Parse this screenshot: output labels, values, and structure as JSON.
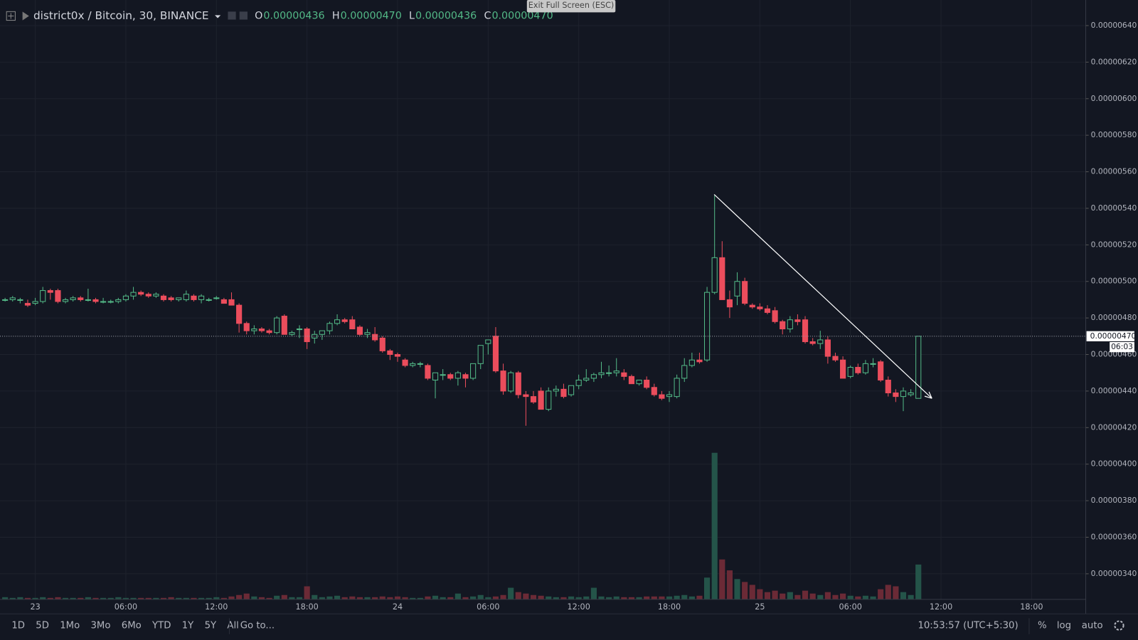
{
  "chart_data": {
    "type": "candlestick",
    "symbol": "district0x / Bitcoin, 30, BINANCE",
    "ohlc_legend": [
      {
        "key": "O",
        "value": "0.00000436"
      },
      {
        "key": "H",
        "value": "0.00000470"
      },
      {
        "key": "L",
        "value": "0.00000436"
      },
      {
        "key": "C",
        "value": "0.00000470"
      }
    ],
    "last_price": 4.7e-06,
    "last_price_label": "0.00000470",
    "countdown": "06:03",
    "up_color": "#53b987",
    "down_color": "#eb4d5c",
    "up_volume_color": "#245449",
    "down_volume_color": "#6b2a36",
    "grid": true,
    "ylim": [
      3.26e-06,
      6.54e-06
    ],
    "yticks": [
      {
        "value": 6.4e-06,
        "label": "0.00000640"
      },
      {
        "value": 6.2e-06,
        "label": "0.00000620"
      },
      {
        "value": 6e-06,
        "label": "0.00000600"
      },
      {
        "value": 5.8e-06,
        "label": "0.00000580"
      },
      {
        "value": 5.6e-06,
        "label": "0.00000560"
      },
      {
        "value": 5.4e-06,
        "label": "0.00000540"
      },
      {
        "value": 5.2e-06,
        "label": "0.00000520"
      },
      {
        "value": 5e-06,
        "label": "0.00000500"
      },
      {
        "value": 4.8e-06,
        "label": "0.00000480"
      },
      {
        "value": 4.6e-06,
        "label": "0.00000460"
      },
      {
        "value": 4.4e-06,
        "label": "0.00000440"
      },
      {
        "value": 4.2e-06,
        "label": "0.00000420"
      },
      {
        "value": 4e-06,
        "label": "0.00000400"
      },
      {
        "value": 3.8e-06,
        "label": "0.00000380"
      },
      {
        "value": 3.6e-06,
        "label": "0.00000360"
      },
      {
        "value": 3.4e-06,
        "label": "0.00000340"
      }
    ],
    "categories": [
      null,
      null,
      null,
      null,
      "23",
      null,
      null,
      null,
      null,
      null,
      null,
      null,
      null,
      null,
      null,
      null,
      "06:00",
      null,
      null,
      null,
      null,
      null,
      null,
      null,
      null,
      null,
      null,
      null,
      "12:00",
      null,
      null,
      null,
      null,
      null,
      null,
      null,
      null,
      null,
      null,
      null,
      "18:00",
      null,
      null,
      null,
      null,
      null,
      null,
      null,
      null,
      null,
      null,
      null,
      "24",
      null,
      null,
      null,
      null,
      null,
      null,
      null,
      null,
      null,
      null,
      null,
      "06:00",
      null,
      null,
      null,
      null,
      null,
      null,
      null,
      null,
      null,
      null,
      null,
      "12:00",
      null,
      null,
      null,
      null,
      null,
      null,
      null,
      null,
      null,
      null,
      null,
      "18:00",
      null,
      null,
      null,
      null,
      null,
      null,
      null,
      null,
      null,
      null,
      null,
      "25",
      null,
      null,
      null,
      null,
      null,
      null,
      null,
      null,
      null,
      null,
      null,
      "06:00",
      null,
      null,
      null,
      null,
      null,
      null,
      null,
      null,
      null,
      null,
      null,
      "12:00",
      null,
      null,
      null,
      null,
      null,
      null,
      null,
      null,
      null,
      null,
      null,
      "18:00",
      null,
      null,
      null,
      null,
      null,
      null
    ],
    "open": [
      4.9e-06,
      4.9e-06,
      4.9e-06,
      4.88e-06,
      4.88e-06,
      4.89e-06,
      4.95e-06,
      4.95e-06,
      4.89e-06,
      4.9e-06,
      4.91e-06,
      4.9e-06,
      4.9e-06,
      4.89e-06,
      4.89e-06,
      4.89e-06,
      4.9e-06,
      4.92e-06,
      4.94e-06,
      4.93e-06,
      4.92e-06,
      4.92e-06,
      4.91e-06,
      4.9e-06,
      4.9e-06,
      4.92e-06,
      4.9e-06,
      4.9e-06,
      4.91e-06,
      4.9e-06,
      4.9e-06,
      4.87e-06,
      4.77e-06,
      4.73e-06,
      4.74e-06,
      4.73e-06,
      4.72e-06,
      4.81e-06,
      4.71e-06,
      4.74e-06,
      4.74e-06,
      4.69e-06,
      4.71e-06,
      4.73e-06,
      4.77e-06,
      4.79e-06,
      4.79e-06,
      4.75e-06,
      4.71e-06,
      4.71e-06,
      4.69e-06,
      4.62e-06,
      4.6e-06,
      4.57e-06,
      4.54e-06,
      4.55e-06,
      4.54e-06,
      4.46e-06,
      4.49e-06,
      4.49e-06,
      4.47e-06,
      4.49e-06,
      4.47e-06,
      4.55e-06,
      4.66e-06,
      4.7e-06,
      4.51e-06,
      4.4e-06,
      4.5e-06,
      4.38e-06,
      4.37e-06,
      4.4e-06,
      4.3e-06,
      4.4e-06,
      4.41e-06,
      4.38e-06,
      4.43e-06,
      4.46e-06,
      4.47e-06,
      4.49e-06,
      4.5e-06,
      4.5e-06,
      4.5e-06,
      4.48e-06,
      4.44e-06,
      4.46e-06,
      4.42e-06,
      4.38e-06,
      4.37e-06,
      4.37e-06,
      4.47e-06,
      4.54e-06,
      4.57e-06,
      4.57e-06,
      4.94e-06,
      5.13e-06,
      4.9e-06,
      4.92e-06,
      5e-06,
      4.87e-06,
      4.86e-06,
      4.85e-06,
      4.84e-06,
      4.78e-06,
      4.74e-06,
      4.79e-06,
      4.79e-06,
      4.67e-06,
      4.66e-06,
      4.68e-06,
      4.59e-06,
      4.57e-06,
      4.48e-06,
      4.53e-06,
      4.5e-06,
      4.55e-06,
      4.56e-06,
      4.46e-06,
      4.39e-06,
      4.37e-06,
      4.38e-06,
      4.36e-06,
      null,
      null,
      null,
      null,
      null,
      null,
      null,
      null,
      null,
      null,
      null,
      null,
      null,
      null,
      null,
      null,
      null,
      null,
      null,
      null,
      null
    ],
    "high": [
      4.91e-06,
      4.92e-06,
      4.91e-06,
      4.9e-06,
      4.91e-06,
      4.97e-06,
      4.96e-06,
      4.96e-06,
      4.91e-06,
      4.92e-06,
      4.92e-06,
      4.96e-06,
      4.91e-06,
      4.91e-06,
      4.9e-06,
      4.91e-06,
      4.93e-06,
      4.97e-06,
      4.95e-06,
      4.94e-06,
      4.94e-06,
      4.93e-06,
      4.92e-06,
      4.91e-06,
      4.95e-06,
      4.93e-06,
      4.93e-06,
      4.91e-06,
      4.92e-06,
      4.91e-06,
      4.94e-06,
      4.88e-06,
      4.78e-06,
      4.76e-06,
      4.75e-06,
      4.74e-06,
      4.81e-06,
      4.82e-06,
      4.73e-06,
      4.76e-06,
      4.75e-06,
      4.73e-06,
      4.73e-06,
      4.78e-06,
      4.82e-06,
      4.8e-06,
      4.81e-06,
      4.76e-06,
      4.74e-06,
      4.75e-06,
      4.7e-06,
      4.63e-06,
      4.61e-06,
      4.58e-06,
      4.56e-06,
      4.56e-06,
      4.55e-06,
      4.5e-06,
      4.52e-06,
      4.5e-06,
      4.51e-06,
      4.5e-06,
      4.55e-06,
      4.65e-06,
      4.68e-06,
      4.75e-06,
      4.55e-06,
      4.51e-06,
      4.51e-06,
      4.4e-06,
      4.4e-06,
      4.42e-06,
      4.42e-06,
      4.43e-06,
      4.44e-06,
      4.43e-06,
      4.49e-06,
      4.52e-06,
      4.5e-06,
      4.56e-06,
      4.54e-06,
      4.58e-06,
      4.52e-06,
      4.49e-06,
      4.46e-06,
      4.48e-06,
      4.44e-06,
      4.4e-06,
      4.4e-06,
      4.49e-06,
      4.58e-06,
      4.61e-06,
      4.61e-06,
      4.97e-06,
      5.47e-06,
      5.22e-06,
      4.95e-06,
      5.05e-06,
      5.02e-06,
      4.88e-06,
      4.88e-06,
      4.87e-06,
      4.86e-06,
      4.79e-06,
      4.81e-06,
      4.82e-06,
      4.81e-06,
      4.69e-06,
      4.73e-06,
      4.7e-06,
      4.61e-06,
      4.59e-06,
      4.54e-06,
      4.55e-06,
      4.57e-06,
      4.58e-06,
      4.57e-06,
      4.48e-06,
      4.41e-06,
      4.42e-06,
      4.41e-06,
      4.7e-06,
      null,
      null,
      null,
      null,
      null,
      null,
      null,
      null,
      null,
      null,
      null,
      null,
      null,
      null,
      null,
      null,
      null,
      null,
      null,
      null,
      null
    ],
    "low": [
      4.89e-06,
      4.89e-06,
      4.88e-06,
      4.86e-06,
      4.87e-06,
      4.88e-06,
      4.9e-06,
      4.88e-06,
      4.88e-06,
      4.89e-06,
      4.89e-06,
      4.89e-06,
      4.88e-06,
      4.88e-06,
      4.88e-06,
      4.88e-06,
      4.89e-06,
      4.9e-06,
      4.92e-06,
      4.91e-06,
      4.91e-06,
      4.89e-06,
      4.89e-06,
      4.89e-06,
      4.89e-06,
      4.89e-06,
      4.88e-06,
      4.89e-06,
      4.9e-06,
      4.88e-06,
      4.87e-06,
      4.72e-06,
      4.71e-06,
      4.71e-06,
      4.72e-06,
      4.71e-06,
      4.71e-06,
      4.71e-06,
      4.7e-06,
      4.69e-06,
      4.63e-06,
      4.66e-06,
      4.68e-06,
      4.71e-06,
      4.76e-06,
      4.77e-06,
      4.74e-06,
      4.7e-06,
      4.69e-06,
      4.67e-06,
      4.61e-06,
      4.57e-06,
      4.56e-06,
      4.53e-06,
      4.53e-06,
      4.53e-06,
      4.46e-06,
      4.36e-06,
      4.46e-06,
      4.46e-06,
      4.43e-06,
      4.42e-06,
      4.46e-06,
      4.52e-06,
      4.6e-06,
      4.5e-06,
      4.38e-06,
      4.39e-06,
      4.36e-06,
      4.21e-06,
      4.33e-06,
      4.3e-06,
      4.29e-06,
      4.37e-06,
      4.36e-06,
      4.37e-06,
      4.41e-06,
      4.45e-06,
      4.45e-06,
      4.47e-06,
      4.48e-06,
      4.48e-06,
      4.46e-06,
      4.44e-06,
      4.43e-06,
      4.41e-06,
      4.37e-06,
      4.35e-06,
      4.34e-06,
      4.36e-06,
      4.45e-06,
      4.53e-06,
      4.55e-06,
      4.56e-06,
      4.93e-06,
      4.9e-06,
      4.8e-06,
      4.87e-06,
      4.87e-06,
      4.85e-06,
      4.84e-06,
      4.82e-06,
      4.77e-06,
      4.71e-06,
      4.72e-06,
      4.76e-06,
      4.66e-06,
      4.65e-06,
      4.63e-06,
      4.55e-06,
      4.56e-06,
      4.47e-06,
      4.47e-06,
      4.49e-06,
      4.49e-06,
      4.53e-06,
      4.45e-06,
      4.37e-06,
      4.34e-06,
      4.29e-06,
      4.37e-06,
      4.36e-06,
      null,
      null,
      null,
      null,
      null,
      null,
      null,
      null,
      null,
      null,
      null,
      null,
      null,
      null,
      null,
      null,
      null,
      null,
      null,
      null,
      null
    ],
    "close": [
      4.9e-06,
      4.91e-06,
      4.9e-06,
      4.87e-06,
      4.89e-06,
      4.95e-06,
      4.94e-06,
      4.89e-06,
      4.9e-06,
      4.91e-06,
      4.9e-06,
      4.9e-06,
      4.89e-06,
      4.89e-06,
      4.89e-06,
      4.9e-06,
      4.92e-06,
      4.94e-06,
      4.93e-06,
      4.92e-06,
      4.93e-06,
      4.9e-06,
      4.9e-06,
      4.91e-06,
      4.93e-06,
      4.9e-06,
      4.92e-06,
      4.9e-06,
      4.91e-06,
      4.88e-06,
      4.87e-06,
      4.77e-06,
      4.73e-06,
      4.74e-06,
      4.73e-06,
      4.72e-06,
      4.8e-06,
      4.71e-06,
      4.72e-06,
      4.74e-06,
      4.67e-06,
      4.71e-06,
      4.73e-06,
      4.77e-06,
      4.79e-06,
      4.78e-06,
      4.74e-06,
      4.71e-06,
      4.72e-06,
      4.68e-06,
      4.62e-06,
      4.6e-06,
      4.59e-06,
      4.54e-06,
      4.55e-06,
      4.55e-06,
      4.47e-06,
      4.5e-06,
      4.49e-06,
      4.47e-06,
      4.5e-06,
      4.47e-06,
      4.55e-06,
      4.65e-06,
      4.68e-06,
      4.51e-06,
      4.4e-06,
      4.5e-06,
      4.38e-06,
      4.37e-06,
      4.34e-06,
      4.3e-06,
      4.4e-06,
      4.41e-06,
      4.37e-06,
      4.43e-06,
      4.46e-06,
      4.47e-06,
      4.49e-06,
      4.5e-06,
      4.5e-06,
      4.51e-06,
      4.48e-06,
      4.44e-06,
      4.46e-06,
      4.42e-06,
      4.38e-06,
      4.36e-06,
      4.38e-06,
      4.47e-06,
      4.54e-06,
      4.57e-06,
      4.56e-06,
      4.94e-06,
      5.13e-06,
      4.9e-06,
      4.86e-06,
      5e-06,
      4.88e-06,
      4.86e-06,
      4.85e-06,
      4.83e-06,
      4.78e-06,
      4.74e-06,
      4.79e-06,
      4.78e-06,
      4.67e-06,
      4.66e-06,
      4.68e-06,
      4.59e-06,
      4.57e-06,
      4.47e-06,
      4.53e-06,
      4.5e-06,
      4.55e-06,
      4.55e-06,
      4.46e-06,
      4.39e-06,
      4.37e-06,
      4.4e-06,
      4.39e-06,
      4.7e-06,
      null,
      null,
      null,
      null,
      null,
      null,
      null,
      null,
      null,
      null,
      null,
      null,
      null,
      null,
      null,
      null,
      null,
      null,
      null,
      null,
      null
    ],
    "volume": [
      3,
      2,
      3,
      2,
      2,
      3,
      2,
      3,
      2,
      2,
      2,
      3,
      2,
      2,
      2,
      3,
      2,
      2,
      2,
      2,
      2,
      2,
      3,
      2,
      2,
      2,
      2,
      2,
      3,
      2,
      4,
      6,
      8,
      4,
      3,
      2,
      5,
      6,
      3,
      3,
      18,
      6,
      3,
      4,
      5,
      3,
      4,
      3,
      3,
      3,
      4,
      3,
      4,
      3,
      2,
      2,
      4,
      5,
      3,
      3,
      8,
      3,
      4,
      6,
      3,
      4,
      6,
      16,
      10,
      8,
      6,
      5,
      4,
      3,
      3,
      4,
      3,
      4,
      16,
      4,
      3,
      4,
      3,
      3,
      3,
      4,
      4,
      4,
      4,
      5,
      6,
      4,
      5,
      30,
      202,
      55,
      40,
      28,
      24,
      20,
      14,
      10,
      12,
      8,
      10,
      6,
      12,
      8,
      6,
      10,
      6,
      8,
      5,
      4,
      5,
      4,
      14,
      20,
      18,
      10,
      6,
      48,
      null,
      null,
      null,
      null,
      null,
      null,
      null,
      null,
      null,
      null,
      null,
      null,
      null,
      null,
      null,
      null,
      null,
      null,
      null,
      null,
      null
    ]
  },
  "toolbar": {
    "exit_fullscreen": "Exit Full Screen (ESC)",
    "ranges": [
      "1D",
      "5D",
      "1Mo",
      "3Mo",
      "6Mo",
      "YTD",
      "1Y",
      "5Y",
      "All"
    ],
    "goto": "Go to...",
    "clock": "10:53:57 (UTC+5:30)",
    "percent": "%",
    "log": "log",
    "auto": "auto"
  }
}
